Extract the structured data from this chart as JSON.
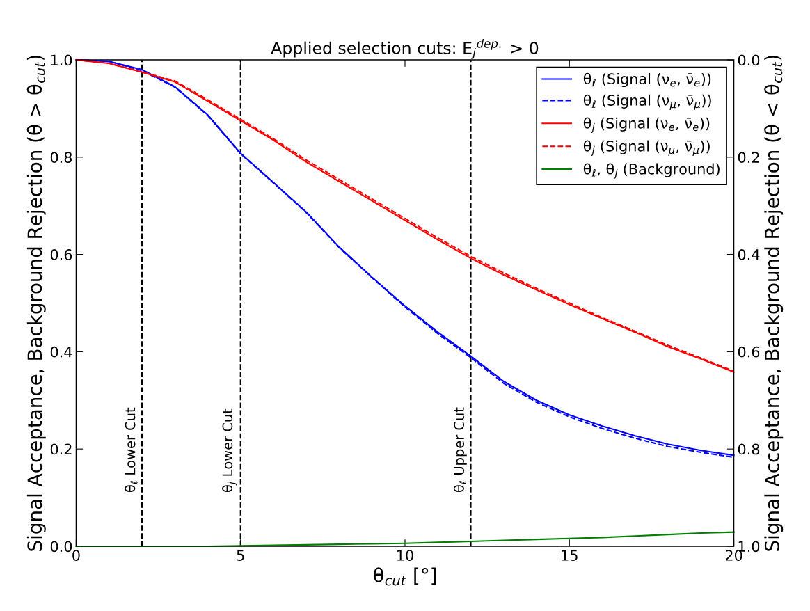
{
  "chart_data": {
    "type": "line",
    "title": "Applied selection cuts: E$_{j}$$^{dep.}$ > 0",
    "xlabel": "θ$_{cut}$ [°]",
    "ylabel": "Signal Acceptance, Background Rejection (θ > θ$_{cut}$)",
    "y2label": "Signal Acceptance, Background Rejection (θ < θ$_{cut}$)",
    "x": [
      0,
      1,
      2,
      3,
      4,
      5,
      6,
      7,
      8,
      9,
      10,
      11,
      12,
      13,
      14,
      15,
      16,
      17,
      18,
      19,
      20
    ],
    "series": [
      {
        "name": "θ$_{ℓ}$ (Signal (ν$_{e}$, ν̄$_{e}$))",
        "color": "#0000ff",
        "line_style": "solid",
        "values": [
          1.0,
          0.997,
          0.98,
          0.945,
          0.887,
          0.808,
          0.748,
          0.687,
          0.615,
          0.553,
          0.494,
          0.44,
          0.391,
          0.339,
          0.3,
          0.27,
          0.247,
          0.227,
          0.21,
          0.197,
          0.187
        ]
      },
      {
        "name": "θ$_{ℓ}$ (Signal (ν$_{μ}$, ν̄$_{μ}$))",
        "color": "#0000ff",
        "line_style": "dashed",
        "values": [
          1.0,
          0.997,
          0.978,
          0.944,
          0.886,
          0.807,
          0.747,
          0.686,
          0.614,
          0.552,
          0.492,
          0.437,
          0.388,
          0.335,
          0.296,
          0.266,
          0.242,
          0.222,
          0.205,
          0.193,
          0.183
        ]
      },
      {
        "name": "θ$_{j}$ (Signal (ν$_{e}$, ν̄$_{e}$))",
        "color": "#ff0000",
        "line_style": "solid",
        "values": [
          1.0,
          0.993,
          0.975,
          0.955,
          0.915,
          0.875,
          0.835,
          0.79,
          0.75,
          0.71,
          0.67,
          0.63,
          0.592,
          0.558,
          0.527,
          0.497,
          0.468,
          0.44,
          0.41,
          0.385,
          0.358
        ]
      },
      {
        "name": "θ$_{j}$ (Signal (ν$_{μ}$, ν̄$_{μ}$))",
        "color": "#ff0000",
        "line_style": "dashed",
        "values": [
          1.0,
          0.993,
          0.975,
          0.957,
          0.918,
          0.878,
          0.838,
          0.794,
          0.754,
          0.714,
          0.674,
          0.634,
          0.596,
          0.562,
          0.53,
          0.5,
          0.47,
          0.442,
          0.413,
          0.387,
          0.36
        ]
      },
      {
        "name": "θ$_{ℓ}$, θ$_{j}$ (Background)",
        "color": "#008000",
        "line_style": "solid",
        "values": [
          0.0,
          0.0,
          0.0,
          0.0,
          0.0,
          0.001,
          0.002,
          0.003,
          0.004,
          0.005,
          0.006,
          0.008,
          0.01,
          0.012,
          0.014,
          0.016,
          0.018,
          0.021,
          0.024,
          0.027,
          0.029
        ]
      }
    ],
    "xlim": [
      0,
      20
    ],
    "xticks": [
      0,
      5,
      10,
      15,
      20
    ],
    "ylim": [
      0.0,
      1.0
    ],
    "yticks": [
      {
        "value": 0,
        "label": "0.0"
      },
      0.2,
      0.4,
      0.6,
      0.8,
      {
        "value": 1,
        "label": "1.0"
      }
    ],
    "y2lim": [
      1.0,
      0.0
    ],
    "y2ticks": [
      {
        "value": 0,
        "label": "0.0"
      },
      0.2,
      0.4,
      0.6,
      0.8,
      {
        "value": 1,
        "label": "1.0"
      }
    ],
    "ref_lines": [
      {
        "axis": "x",
        "value": 2,
        "label": "θ$_{ℓ}$ Lower Cut",
        "color": "#000000",
        "line_style": "dashed"
      },
      {
        "axis": "x",
        "value": 5,
        "label": "θ$_{j}$ Lower Cut",
        "color": "#000000",
        "line_style": "dashed"
      },
      {
        "axis": "x",
        "value": 12,
        "label": "θ$_{ℓ}$ Upper Cut",
        "color": "#000000",
        "line_style": "dashed"
      }
    ],
    "legend": "top right",
    "grid": false,
    "marker": "none"
  }
}
